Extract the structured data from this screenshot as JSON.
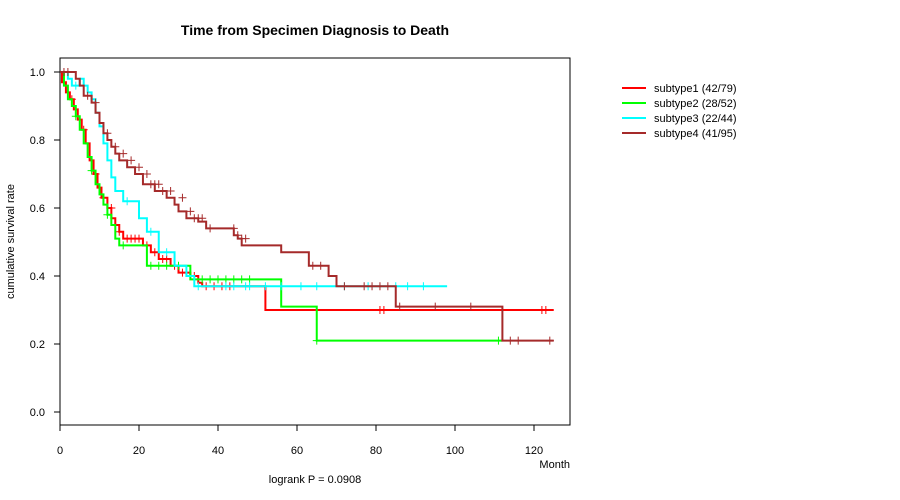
{
  "chart_data": {
    "type": "line",
    "title": "Time from Specimen Diagnosis to Death",
    "xlabel": "Month",
    "ylabel": "cumulative survival rate",
    "xlim": [
      0,
      130
    ],
    "ylim": [
      -0.04,
      1.04
    ],
    "xticks": [
      "0",
      "20",
      "40",
      "60",
      "80",
      "100",
      "120"
    ],
    "yticks": [
      "0.0",
      "0.2",
      "0.4",
      "0.6",
      "0.8",
      "1.0"
    ],
    "annotation": "logrank P = 0.0908",
    "series": [
      {
        "name": "subtype1 (42/79)",
        "color": "#ff0000",
        "steps": [
          [
            0,
            1.0
          ],
          [
            0.5,
            0.97
          ],
          [
            1.5,
            0.94
          ],
          [
            2.5,
            0.92
          ],
          [
            3.5,
            0.89
          ],
          [
            4.5,
            0.86
          ],
          [
            5.5,
            0.83
          ],
          [
            6.5,
            0.79
          ],
          [
            7.5,
            0.74
          ],
          [
            8.5,
            0.7
          ],
          [
            9.5,
            0.66
          ],
          [
            10.5,
            0.63
          ],
          [
            12,
            0.6
          ],
          [
            13,
            0.57
          ],
          [
            14,
            0.55
          ],
          [
            15,
            0.53
          ],
          [
            16,
            0.51
          ],
          [
            21,
            0.49
          ],
          [
            23,
            0.47
          ],
          [
            25,
            0.45
          ],
          [
            28,
            0.43
          ],
          [
            30,
            0.41
          ],
          [
            33,
            0.4
          ],
          [
            35,
            0.38
          ],
          [
            36,
            0.37
          ],
          [
            52,
            0.3
          ],
          [
            125,
            0.3
          ]
        ],
        "censor": [
          [
            3,
            0.92
          ],
          [
            6,
            0.83
          ],
          [
            9,
            0.7
          ],
          [
            11,
            0.63
          ],
          [
            13,
            0.6
          ],
          [
            15,
            0.53
          ],
          [
            17,
            0.51
          ],
          [
            18,
            0.51
          ],
          [
            19,
            0.51
          ],
          [
            20,
            0.51
          ],
          [
            22,
            0.49
          ],
          [
            24,
            0.47
          ],
          [
            26,
            0.45
          ],
          [
            27,
            0.45
          ],
          [
            29,
            0.43
          ],
          [
            31,
            0.41
          ],
          [
            34,
            0.4
          ],
          [
            37,
            0.37
          ],
          [
            39,
            0.37
          ],
          [
            41,
            0.37
          ],
          [
            43,
            0.37
          ],
          [
            81,
            0.3
          ],
          [
            82,
            0.3
          ],
          [
            122,
            0.3
          ],
          [
            123,
            0.3
          ]
        ]
      },
      {
        "name": "subtype2 (28/52)",
        "color": "#00ff00",
        "steps": [
          [
            0,
            1.0
          ],
          [
            1,
            0.96
          ],
          [
            2,
            0.92
          ],
          [
            3,
            0.9
          ],
          [
            4,
            0.87
          ],
          [
            5,
            0.83
          ],
          [
            6,
            0.79
          ],
          [
            7,
            0.75
          ],
          [
            8,
            0.71
          ],
          [
            9,
            0.67
          ],
          [
            10,
            0.64
          ],
          [
            11,
            0.61
          ],
          [
            12,
            0.58
          ],
          [
            13,
            0.55
          ],
          [
            14,
            0.51
          ],
          [
            15,
            0.49
          ],
          [
            22,
            0.43
          ],
          [
            33,
            0.39
          ],
          [
            56,
            0.31
          ],
          [
            65,
            0.21
          ],
          [
            112,
            0.21
          ]
        ],
        "censor": [
          [
            4,
            0.87
          ],
          [
            8,
            0.71
          ],
          [
            12,
            0.58
          ],
          [
            16,
            0.49
          ],
          [
            23,
            0.43
          ],
          [
            25,
            0.43
          ],
          [
            27,
            0.43
          ],
          [
            30,
            0.43
          ],
          [
            34,
            0.39
          ],
          [
            36,
            0.39
          ],
          [
            38,
            0.39
          ],
          [
            40,
            0.39
          ],
          [
            42,
            0.39
          ],
          [
            44,
            0.39
          ],
          [
            46,
            0.39
          ],
          [
            48,
            0.39
          ],
          [
            65,
            0.21
          ],
          [
            111,
            0.21
          ]
        ]
      },
      {
        "name": "subtype3 (22/44)",
        "color": "#00ffff",
        "steps": [
          [
            0,
            1.0
          ],
          [
            2,
            0.98
          ],
          [
            3,
            0.96
          ],
          [
            5,
            0.98
          ],
          [
            6,
            0.96
          ],
          [
            7,
            0.94
          ],
          [
            8,
            0.92
          ],
          [
            9,
            0.88
          ],
          [
            10,
            0.84
          ],
          [
            11,
            0.79
          ],
          [
            12,
            0.74
          ],
          [
            13,
            0.69
          ],
          [
            14,
            0.65
          ],
          [
            16,
            0.62
          ],
          [
            20,
            0.57
          ],
          [
            22,
            0.53
          ],
          [
            25,
            0.47
          ],
          [
            29,
            0.43
          ],
          [
            32,
            0.4
          ],
          [
            34,
            0.37
          ],
          [
            98,
            0.37
          ]
        ],
        "censor": [
          [
            4,
            0.96
          ],
          [
            17,
            0.62
          ],
          [
            23,
            0.53
          ],
          [
            27,
            0.47
          ],
          [
            35,
            0.37
          ],
          [
            42,
            0.37
          ],
          [
            44,
            0.37
          ],
          [
            47,
            0.37
          ],
          [
            48,
            0.37
          ],
          [
            52,
            0.37
          ],
          [
            56,
            0.37
          ],
          [
            61,
            0.37
          ],
          [
            65,
            0.37
          ],
          [
            72,
            0.37
          ],
          [
            78,
            0.37
          ],
          [
            85,
            0.37
          ],
          [
            88,
            0.37
          ],
          [
            92,
            0.37
          ]
        ]
      },
      {
        "name": "subtype4 (41/95)",
        "color": "#a52a2a",
        "steps": [
          [
            0,
            1.0
          ],
          [
            4,
            0.98
          ],
          [
            5,
            0.96
          ],
          [
            6,
            0.93
          ],
          [
            8,
            0.91
          ],
          [
            9,
            0.88
          ],
          [
            10,
            0.85
          ],
          [
            11,
            0.82
          ],
          [
            12,
            0.8
          ],
          [
            13,
            0.78
          ],
          [
            14,
            0.76
          ],
          [
            15,
            0.74
          ],
          [
            17,
            0.72
          ],
          [
            19,
            0.7
          ],
          [
            21,
            0.67
          ],
          [
            24,
            0.65
          ],
          [
            27,
            0.63
          ],
          [
            29,
            0.61
          ],
          [
            30,
            0.59
          ],
          [
            32,
            0.57
          ],
          [
            35,
            0.56
          ],
          [
            37,
            0.54
          ],
          [
            44,
            0.52
          ],
          [
            45,
            0.51
          ],
          [
            46,
            0.49
          ],
          [
            56,
            0.47
          ],
          [
            63,
            0.43
          ],
          [
            68,
            0.4
          ],
          [
            70,
            0.37
          ],
          [
            85,
            0.31
          ],
          [
            112,
            0.21
          ],
          [
            125,
            0.21
          ]
        ],
        "censor": [
          [
            1,
            1.0
          ],
          [
            2,
            1.0
          ],
          [
            7,
            0.93
          ],
          [
            9,
            0.91
          ],
          [
            12,
            0.82
          ],
          [
            14,
            0.78
          ],
          [
            16,
            0.76
          ],
          [
            18,
            0.74
          ],
          [
            20,
            0.72
          ],
          [
            22,
            0.7
          ],
          [
            23,
            0.67
          ],
          [
            24,
            0.67
          ],
          [
            25,
            0.67
          ],
          [
            26,
            0.65
          ],
          [
            28,
            0.65
          ],
          [
            31,
            0.63
          ],
          [
            33,
            0.59
          ],
          [
            34,
            0.57
          ],
          [
            35,
            0.57
          ],
          [
            36,
            0.57
          ],
          [
            38,
            0.54
          ],
          [
            44,
            0.54
          ],
          [
            45,
            0.52
          ],
          [
            46,
            0.51
          ],
          [
            47,
            0.51
          ],
          [
            64,
            0.43
          ],
          [
            66,
            0.43
          ],
          [
            72,
            0.37
          ],
          [
            77,
            0.37
          ],
          [
            79,
            0.37
          ],
          [
            81,
            0.37
          ],
          [
            83,
            0.37
          ],
          [
            86,
            0.31
          ],
          [
            95,
            0.31
          ],
          [
            104,
            0.31
          ],
          [
            114,
            0.21
          ],
          [
            116,
            0.21
          ],
          [
            124,
            0.21
          ]
        ]
      }
    ]
  }
}
